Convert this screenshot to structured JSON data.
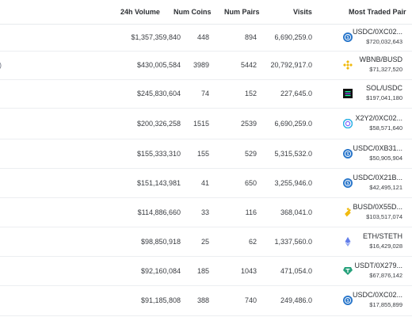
{
  "header": {
    "volume": "24h Volume",
    "num_coins": "Num Coins",
    "num_pairs": "Num Pairs",
    "visits": "Visits",
    "most_traded_pair": "Most Traded Pair"
  },
  "rows": [
    {
      "left_fragment": "",
      "volume": "$1,357,359,840",
      "coins": "448",
      "pairs": "894",
      "visits": "6,690,259.0",
      "pair": "USDC/0XC02...",
      "pair_volume": "$720,032,643",
      "icon": "usdc-icon"
    },
    {
      "left_fragment": ")",
      "volume": "$430,005,584",
      "coins": "3989",
      "pairs": "5442",
      "visits": "20,792,917.0",
      "pair": "WBNB/BUSD",
      "pair_volume": "$71,327,520",
      "icon": "bnb-icon"
    },
    {
      "left_fragment": "",
      "volume": "$245,830,604",
      "coins": "74",
      "pairs": "152",
      "visits": "227,645.0",
      "pair": "SOL/USDC",
      "pair_volume": "$197,041,180",
      "icon": "sol-icon"
    },
    {
      "left_fragment": "",
      "volume": "$200,326,258",
      "coins": "1515",
      "pairs": "2539",
      "visits": "6,690,259.0",
      "pair": "X2Y2/0XC02...",
      "pair_volume": "$58,571,640",
      "icon": "x2y2-icon"
    },
    {
      "left_fragment": "",
      "volume": "$155,333,310",
      "coins": "155",
      "pairs": "529",
      "visits": "5,315,532.0",
      "pair": "USDC/0XB31...",
      "pair_volume": "$50,905,904",
      "icon": "usdc-icon"
    },
    {
      "left_fragment": "",
      "volume": "$151,143,981",
      "coins": "41",
      "pairs": "650",
      "visits": "3,255,946.0",
      "pair": "USDC/0X21B...",
      "pair_volume": "$42,495,121",
      "icon": "usdc-icon"
    },
    {
      "left_fragment": "",
      "volume": "$114,886,660",
      "coins": "33",
      "pairs": "116",
      "visits": "368,041.0",
      "pair": "BUSD/0X55D...",
      "pair_volume": "$103,517,074",
      "icon": "busd-icon"
    },
    {
      "left_fragment": "",
      "volume": "$98,850,918",
      "coins": "25",
      "pairs": "62",
      "visits": "1,337,560.0",
      "pair": "ETH/STETH",
      "pair_volume": "$16,429,028",
      "icon": "eth-icon"
    },
    {
      "left_fragment": "",
      "volume": "$92,160,084",
      "coins": "185",
      "pairs": "1043",
      "visits": "471,054.0",
      "pair": "USDT/0X279...",
      "pair_volume": "$67,876,142",
      "icon": "usdt-icon"
    },
    {
      "left_fragment": "",
      "volume": "$91,185,808",
      "coins": "388",
      "pairs": "740",
      "visits": "249,486.0",
      "pair": "USDC/0XC02...",
      "pair_volume": "$17,855,899",
      "icon": "usdc-icon"
    }
  ],
  "colors": {
    "usdc": "#2775ca",
    "bnb": "#f0b90b",
    "busd": "#f0b90b",
    "sol": "#111111",
    "x2y2": "#2ab0e5",
    "eth": "#627eea",
    "usdt": "#26a17b"
  }
}
